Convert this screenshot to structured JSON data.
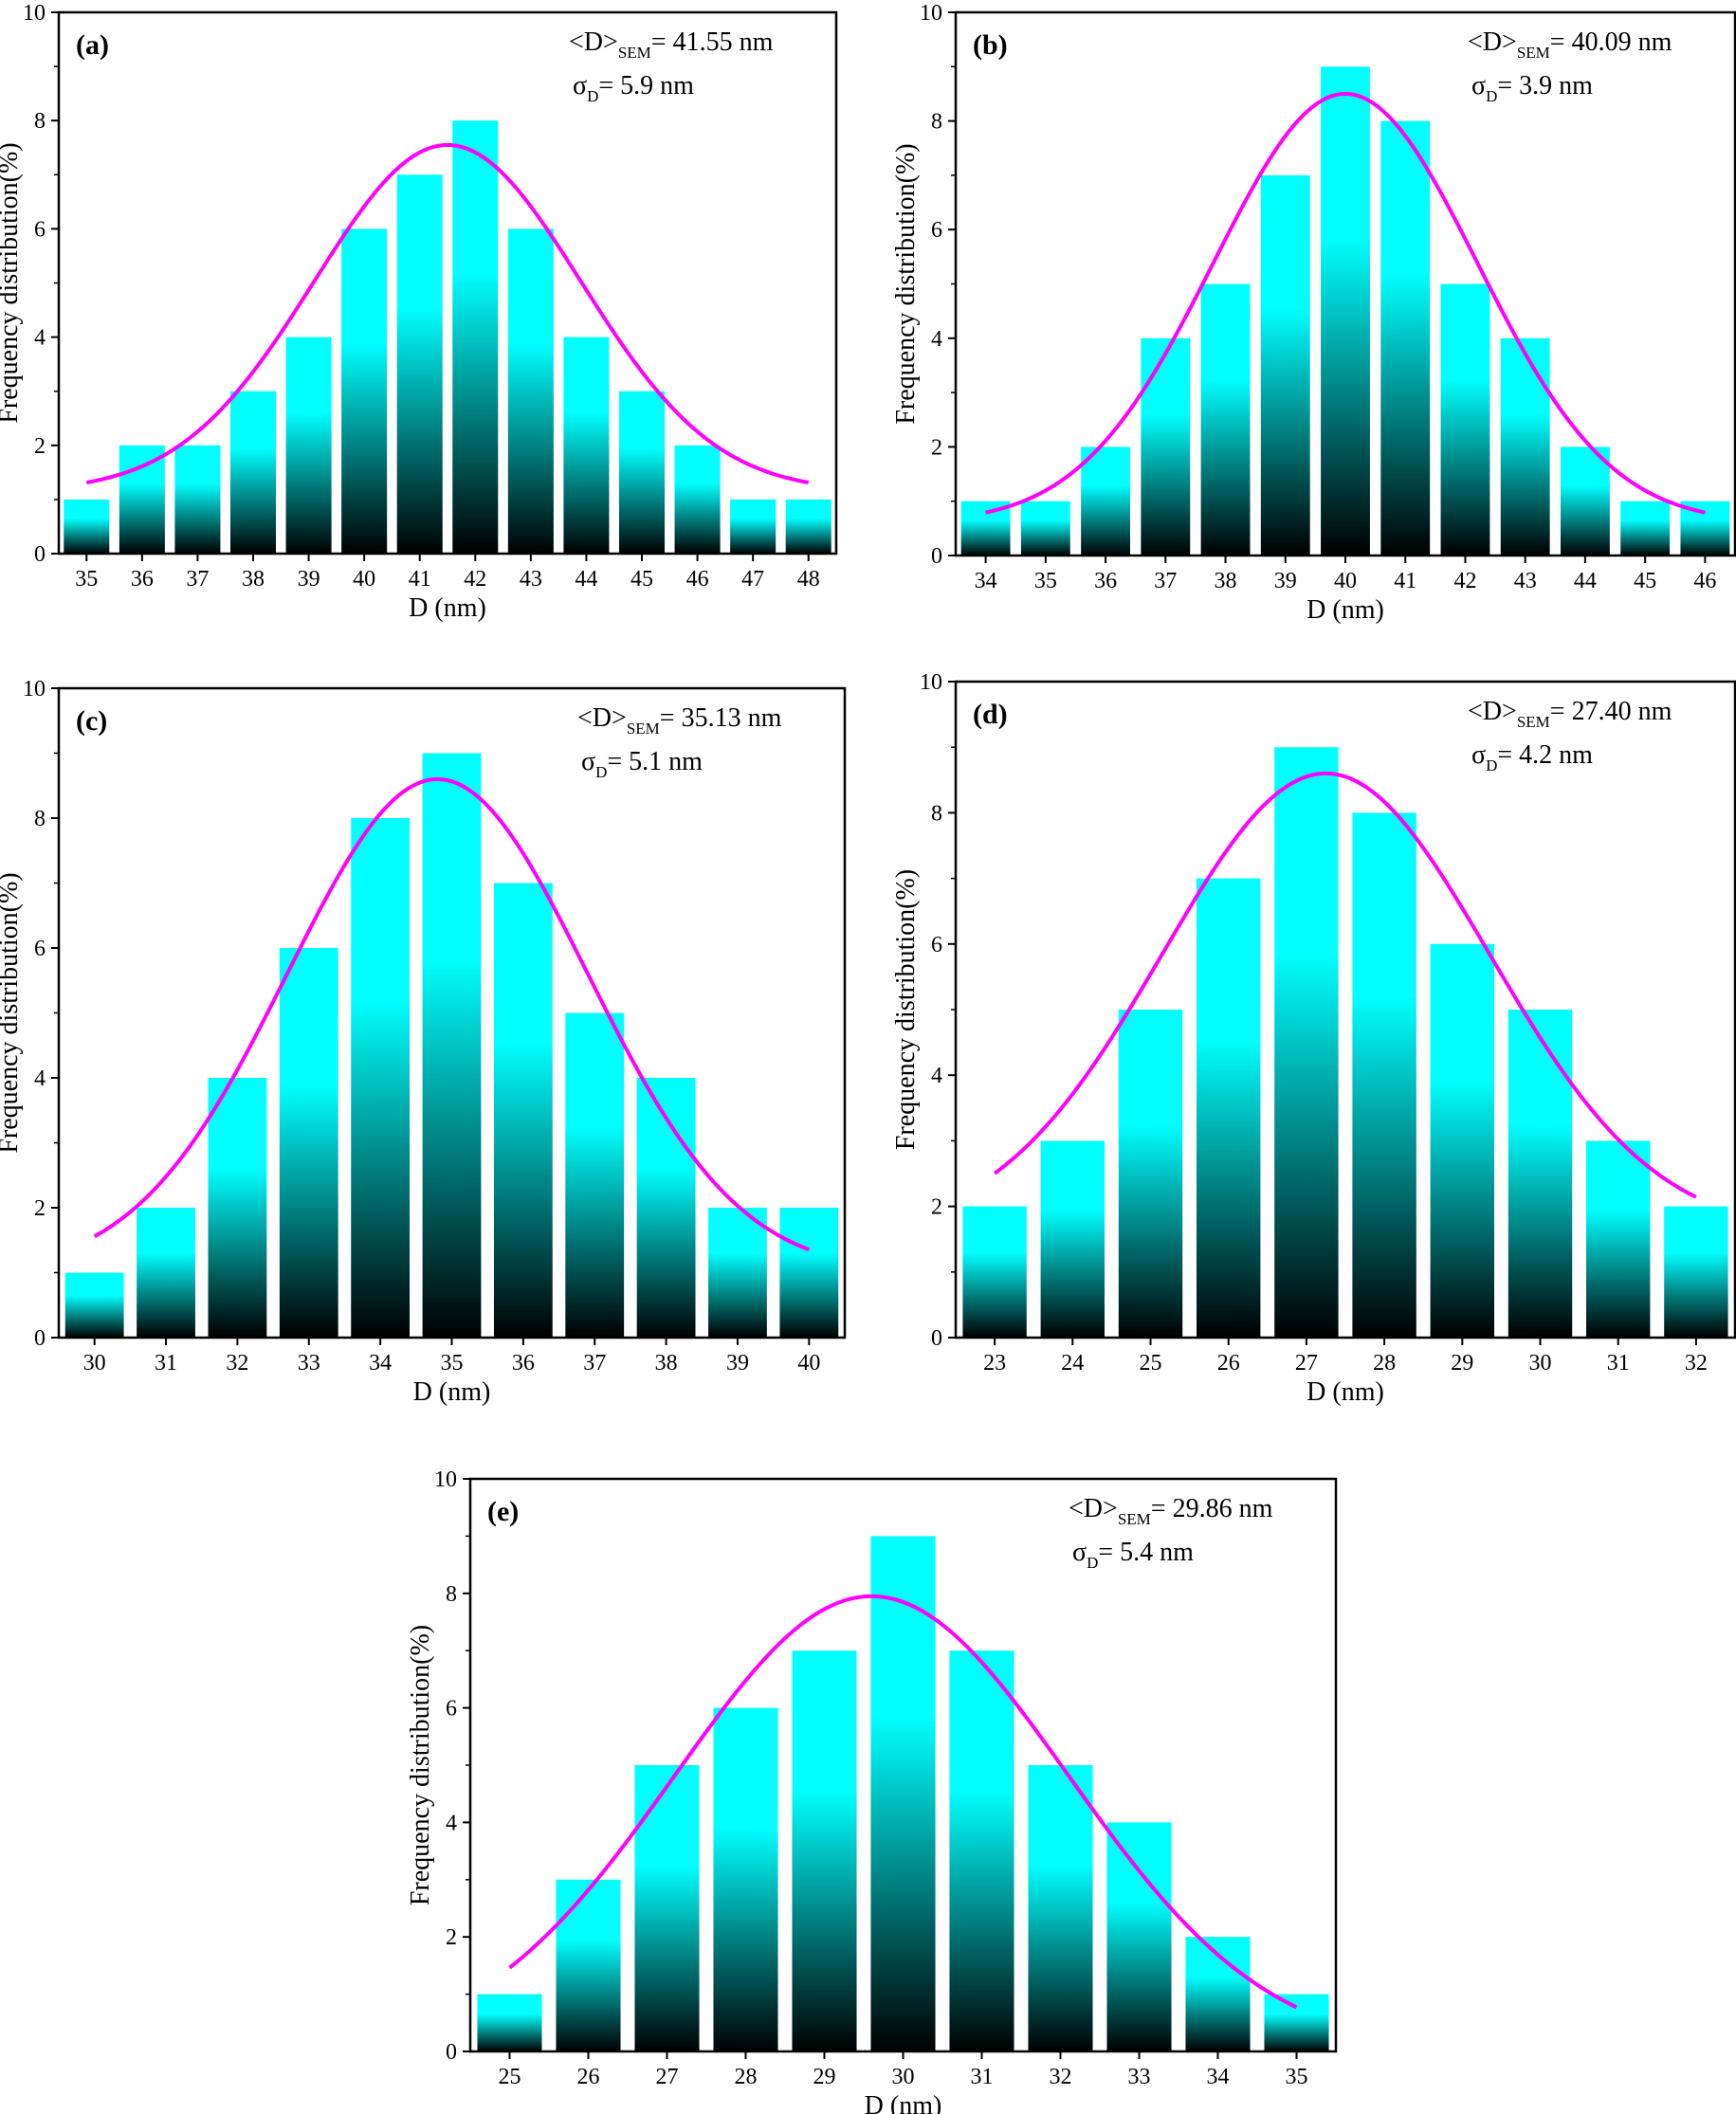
{
  "figure": {
    "bar_gradient": {
      "top": "#00ffff",
      "bottom": "#000000"
    },
    "fit_color": "#ff00ff",
    "axis_color": "#000000"
  },
  "chart_data": [
    {
      "type": "bar",
      "id": "a",
      "panel_label": "(a)",
      "categories": [
        "35",
        "36",
        "37",
        "38",
        "39",
        "40",
        "41",
        "42",
        "43",
        "44",
        "45",
        "46",
        "47",
        "48"
      ],
      "values": [
        1,
        2,
        2,
        3,
        4,
        6,
        7,
        8,
        6,
        4,
        3,
        2,
        1,
        1
      ],
      "xlabel": "D (nm)",
      "ylabel": "Frequency distribution(%)",
      "ylim": [
        0,
        10
      ],
      "yticks": [
        "0",
        "2",
        "4",
        "6",
        "8",
        "10"
      ],
      "fit": {
        "mean": 41.5,
        "sigma": 2.4,
        "amplitude": 6.4,
        "offset": 1.15
      },
      "annotation": {
        "mean_text": "<D>",
        "mean_sub": "SEM",
        "mean_value": "= 41.55 nm",
        "sigma_text": "σ",
        "sigma_sub": "D",
        "sigma_value": "= 5.9 nm"
      }
    },
    {
      "type": "bar",
      "id": "b",
      "panel_label": "(b)",
      "categories": [
        "34",
        "35",
        "36",
        "37",
        "38",
        "39",
        "40",
        "41",
        "42",
        "43",
        "44",
        "45",
        "46"
      ],
      "values": [
        1,
        1,
        2,
        4,
        5,
        7,
        9,
        8,
        5,
        4,
        2,
        1,
        1
      ],
      "xlabel": "D (nm)",
      "ylabel": "Frequency distribution(%)",
      "ylim": [
        0,
        10
      ],
      "yticks": [
        "0",
        "2",
        "4",
        "6",
        "8",
        "10"
      ],
      "fit": {
        "mean": 40.0,
        "sigma": 2.2,
        "amplitude": 7.9,
        "offset": 0.6
      },
      "annotation": {
        "mean_text": "<D>",
        "mean_sub": "SEM",
        "mean_value": "= 40.09 nm",
        "sigma_text": "σ",
        "sigma_sub": "D",
        "sigma_value": "= 3.9 nm"
      }
    },
    {
      "type": "bar",
      "id": "c",
      "panel_label": "(c)",
      "categories": [
        "30",
        "31",
        "32",
        "33",
        "34",
        "35",
        "36",
        "37",
        "38",
        "39",
        "40"
      ],
      "values": [
        1,
        2,
        4,
        6,
        8,
        9,
        7,
        5,
        4,
        2,
        2
      ],
      "xlabel": "D (nm)",
      "ylabel": "Frequency distribution(%)",
      "ylim": [
        0,
        10
      ],
      "yticks": [
        "0",
        "2",
        "4",
        "6",
        "8",
        "10"
      ],
      "fit": {
        "mean": 34.8,
        "sigma": 2.1,
        "amplitude": 7.6,
        "offset": 1.0
      },
      "annotation": {
        "mean_text": "<D>",
        "mean_sub": "SEM",
        "mean_value": "= 35.13 nm",
        "sigma_text": "σ",
        "sigma_sub": "D",
        "sigma_value": "= 5.1 nm"
      }
    },
    {
      "type": "bar",
      "id": "d",
      "panel_label": "(d)",
      "categories": [
        "23",
        "24",
        "25",
        "26",
        "27",
        "28",
        "29",
        "30",
        "31",
        "32"
      ],
      "values": [
        2,
        3,
        5,
        7,
        9,
        8,
        6,
        5,
        3,
        2
      ],
      "xlabel": "D (nm)",
      "ylabel": "Frequency distribution(%)",
      "ylim": [
        0,
        10
      ],
      "yticks": [
        "0",
        "2",
        "4",
        "6",
        "8",
        "10"
      ],
      "fit": {
        "mean": 27.25,
        "sigma": 2.1,
        "amplitude": 7.0,
        "offset": 1.6
      },
      "annotation": {
        "mean_text": "<D>",
        "mean_sub": "SEM",
        "mean_value": "= 27.40 nm",
        "sigma_text": "σ",
        "sigma_sub": "D",
        "sigma_value": "= 4.2 nm"
      }
    },
    {
      "type": "bar",
      "id": "e",
      "panel_label": "(e)",
      "categories": [
        "25",
        "26",
        "27",
        "28",
        "29",
        "30",
        "31",
        "32",
        "33",
        "34",
        "35"
      ],
      "values": [
        1,
        3,
        5,
        6,
        7,
        9,
        7,
        5,
        4,
        2,
        1
      ],
      "xlabel": "D (nm)",
      "ylabel": "Frequency distribution(%)",
      "ylim": [
        0,
        10
      ],
      "yticks": [
        "0",
        "2",
        "4",
        "6",
        "8",
        "10"
      ],
      "fit": {
        "mean": 29.6,
        "sigma": 2.5,
        "amplitude": 7.95,
        "offset": 0.0
      },
      "annotation": {
        "mean_text": "<D>",
        "mean_sub": "SEM",
        "mean_value": "= 29.86 nm",
        "sigma_text": "σ",
        "sigma_sub": "D",
        "sigma_value": "= 5.4 nm"
      }
    }
  ]
}
